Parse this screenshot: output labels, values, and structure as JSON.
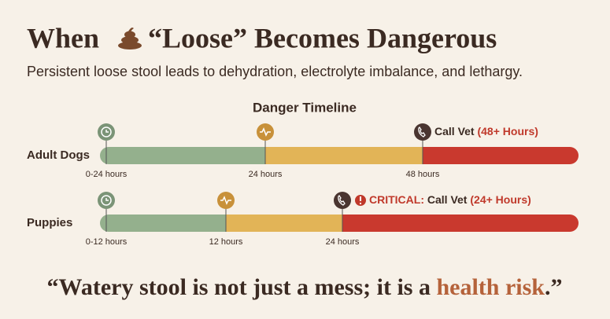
{
  "header": {
    "title_before": "When",
    "title_after": "“Loose” Becomes Dangerous",
    "subtitle": "Persistent loose stool leads to dehydration, electrolyte imbalance, and lethargy."
  },
  "timeline": {
    "title": "Danger Timeline",
    "rows": [
      {
        "label": "Adult Dogs",
        "stages": [
          "0-24 hours",
          "24 hours",
          "48 hours"
        ],
        "alert": {
          "text": "Call Vet",
          "detail": "(48+ Hours)"
        }
      },
      {
        "label": "Puppies",
        "stages": [
          "0-12 hours",
          "12 hours",
          "24 hours"
        ],
        "alert": {
          "prefix": "CRITICAL:",
          "text": "Call Vet",
          "detail": "(24+ Hours)"
        }
      }
    ]
  },
  "quote": {
    "before": "“Watery stool is not just a mess; it is a ",
    "highlight": "health risk",
    "after": ".”"
  }
}
